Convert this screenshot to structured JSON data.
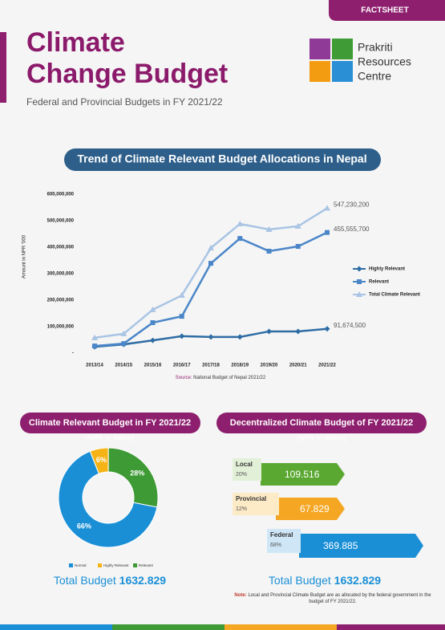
{
  "header": {
    "tag": "FACTSHEET",
    "title_line1": "Climate",
    "title_line2": "Change Budget",
    "subtitle": "Federal and Provincial Budgets in FY 2021/22"
  },
  "logo": {
    "lines": [
      "Prakriti",
      "Resources",
      "Centre"
    ]
  },
  "chart_data": [
    {
      "type": "line",
      "title": "Trend of Climate Relevant Budget Allocations in Nepal",
      "y_label": "Amount in NPR '000",
      "categories": [
        "2013/14",
        "2014/15",
        "2015/16",
        "2016/17",
        "2017/18",
        "2018/19",
        "2019/20",
        "2020/21",
        "2021/22"
      ],
      "series": [
        {
          "name": "Highly Relevant",
          "color": "#2e6da4",
          "marker": "diamond",
          "values": [
            24000000,
            33000000,
            48000000,
            64000000,
            61000000,
            61000000,
            82000000,
            82000000,
            91674500
          ],
          "value_labels": [
            null,
            null,
            null,
            null,
            null,
            null,
            null,
            null,
            "91,674,500"
          ]
        },
        {
          "name": "Relevant",
          "color": "#4a86c8",
          "marker": "square",
          "values": [
            27000000,
            36000000,
            115000000,
            139000000,
            339000000,
            433000000,
            385000000,
            403000000,
            455555700
          ],
          "value_labels": [
            null,
            null,
            null,
            null,
            null,
            null,
            null,
            null,
            "455,555,700"
          ]
        },
        {
          "name": "Total Climate Relevant",
          "color": "#a9c4e4",
          "marker": "triangle",
          "values": [
            58000000,
            73000000,
            164000000,
            218000000,
            397000000,
            488000000,
            467000000,
            479000000,
            547230200
          ],
          "value_labels": [
            null,
            null,
            null,
            null,
            null,
            null,
            null,
            null,
            "547,230,200"
          ]
        }
      ],
      "ylim": [
        0,
        600000000
      ],
      "yticks": [
        {
          "value": 0,
          "label": "-"
        },
        {
          "value": 100000000,
          "label": "100,000,000"
        },
        {
          "value": 200000000,
          "label": "200,000,000"
        },
        {
          "value": 300000000,
          "label": "300,000,000"
        },
        {
          "value": 400000000,
          "label": "400,000,000"
        },
        {
          "value": 500000000,
          "label": "500,000,000"
        },
        {
          "value": 600000000,
          "label": "600,000,000"
        }
      ],
      "legend": "right",
      "grid": false,
      "source_label": "Source:",
      "source": "National Budget of Nepal 2021/22"
    },
    {
      "type": "pie",
      "title": "Climate Relevant Budget in FY 2021/22",
      "subtitle": "(NPR In Billion)",
      "categories": [
        "Normal",
        "Highly Relevant",
        "Relevant"
      ],
      "values": [
        66,
        6,
        28
      ],
      "value_labels": [
        "66%",
        "6%",
        "28%"
      ],
      "colors": [
        "#1a8fd6",
        "#f5b316",
        "#3e9a35"
      ],
      "total_label": "Total Budget",
      "total": 1632.829
    }
  ],
  "decentralized": {
    "title": "Decentralized Climate Budget of FY 2021/22",
    "subtitle": "(NPR In Billion)",
    "items": [
      {
        "name": "Local",
        "share": "20%",
        "value": 109.516,
        "color": "#5aa832",
        "light": "#e3f0d8"
      },
      {
        "name": "Provincial",
        "share": "12%",
        "value": 67.829,
        "color": "#f5a623",
        "light": "#fdebc8"
      },
      {
        "name": "Federal",
        "share": "68%",
        "value": 369.885,
        "color": "#1a8fd6",
        "light": "#cfe6f7"
      }
    ],
    "total_label": "Total Budget",
    "total": 1632.829,
    "note_label": "Note:",
    "note": "Local and Provincial Climate Budget are as allocated by the federal government in the budget of FY 2021/22."
  }
}
